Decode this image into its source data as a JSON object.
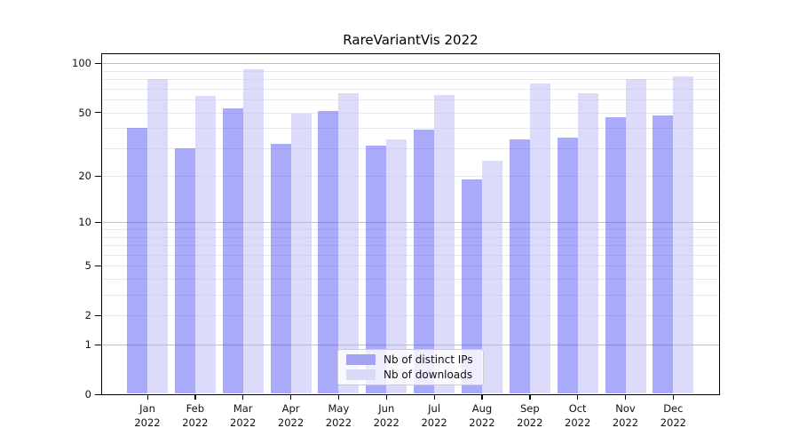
{
  "title": "RareVariantVis 2022",
  "legend": {
    "position": "lower center",
    "items": [
      {
        "label": "Nb of distinct IPs",
        "swatch_color": "#a3a3f2"
      },
      {
        "label": "Nb of downloads",
        "swatch_color": "#d9d9f8"
      }
    ]
  },
  "colors": {
    "bar_ips_fill": "rgba(85,85,248,0.5)",
    "bar_downloads_fill": "rgba(186,186,246,0.5)",
    "grid_decade": "#bfbfc6",
    "grid_minor": "#e8e8ed",
    "spine": "#000000"
  },
  "chart_data": {
    "type": "bar",
    "title": "RareVariantVis 2022",
    "categories": [
      "Jan 2022",
      "Feb 2022",
      "Mar 2022",
      "Apr 2022",
      "May 2022",
      "Jun 2022",
      "Jul 2022",
      "Aug 2022",
      "Sep 2022",
      "Oct 2022",
      "Nov 2022",
      "Dec 2022"
    ],
    "series": [
      {
        "name": "Nb of distinct IPs",
        "values": [
          40,
          30,
          53,
          32,
          51,
          31,
          39,
          19,
          34,
          35,
          47,
          48
        ]
      },
      {
        "name": "Nb of downloads",
        "values": [
          80,
          63,
          92,
          49,
          66,
          34,
          64,
          25,
          75,
          66,
          80,
          83
        ]
      }
    ],
    "xlabel": "",
    "ylabel": "",
    "yscale": "log1p",
    "ylim": [
      0,
      114
    ],
    "y_ticks": [
      0,
      1,
      2,
      5,
      10,
      20,
      50,
      100
    ],
    "y_decade_gridlines": [
      1,
      10,
      100
    ],
    "y_minor_gridlines": [
      2,
      3,
      4,
      5,
      6,
      7,
      8,
      9,
      20,
      30,
      40,
      50,
      60,
      70,
      80,
      90
    ],
    "grid": true,
    "legend_position": "lower center"
  }
}
